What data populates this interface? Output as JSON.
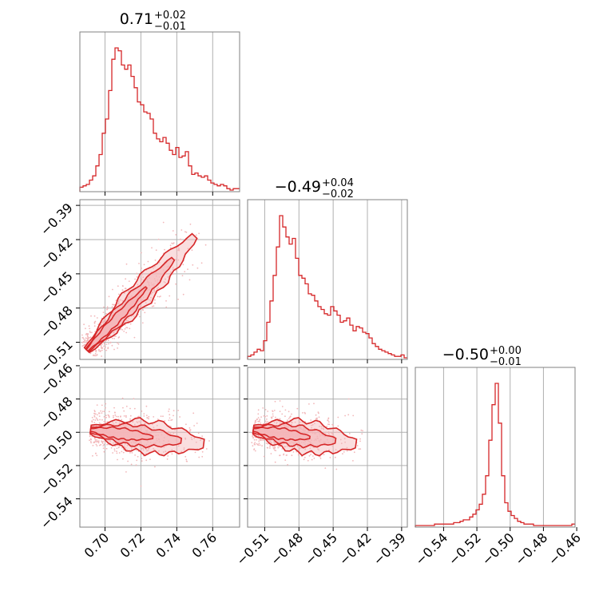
{
  "chart_data": {
    "type": "corner",
    "color": "#d62728",
    "contour_fill": "#f4b6b8",
    "scatter_color": "#f2b8ba",
    "grid": true,
    "parameters": [
      {
        "title_value": "0.71",
        "title_plus": "+0.02",
        "title_minus": "−0.01",
        "range": [
          0.686,
          0.775
        ],
        "ticks": [
          0.7,
          0.72,
          0.74,
          0.76
        ],
        "tick_labels": [
          "0.70",
          "0.72",
          "0.74",
          "0.76"
        ]
      },
      {
        "title_value": "−0.49",
        "title_plus": "+0.04",
        "title_minus": "−0.02",
        "range": [
          -0.525,
          -0.385
        ],
        "ticks": [
          -0.51,
          -0.48,
          -0.45,
          -0.42,
          -0.39
        ],
        "tick_labels": [
          "−0.51",
          "−0.48",
          "−0.45",
          "−0.42",
          "−0.39"
        ]
      },
      {
        "title_value": "−0.50",
        "title_plus": "+0.00",
        "title_minus": "−0.01",
        "range": [
          -0.557,
          -0.461
        ],
        "ticks": [
          -0.54,
          -0.52,
          -0.5,
          -0.48,
          -0.46
        ],
        "tick_labels": [
          "−0.54",
          "−0.52",
          "−0.50",
          "−0.48",
          "−0.46"
        ]
      }
    ],
    "histograms": [
      {
        "param": 0,
        "edges_start": 0.686,
        "bin_width": 0.00178,
        "counts": [
          2,
          3,
          4,
          7,
          10,
          17,
          25,
          40,
          50,
          70,
          92,
          100,
          98,
          88,
          85,
          88,
          80,
          72,
          62,
          60,
          55,
          54,
          50,
          40,
          36,
          34,
          37,
          33,
          28,
          25,
          30,
          23,
          24,
          27,
          17,
          11,
          12,
          10,
          9,
          10,
          7,
          5,
          4,
          3,
          4,
          3,
          1,
          0,
          1,
          1
        ]
      },
      {
        "param": 1,
        "edges_start": -0.525,
        "bin_width": 0.0028,
        "counts": [
          1,
          2,
          4,
          6,
          5,
          12,
          25,
          40,
          58,
          78,
          100,
          92,
          85,
          80,
          84,
          70,
          58,
          56,
          52,
          45,
          44,
          40,
          36,
          34,
          31,
          30,
          36,
          33,
          30,
          25,
          26,
          28,
          23,
          19,
          22,
          21,
          18,
          17,
          14,
          10,
          8,
          6,
          5,
          4,
          3,
          2,
          1,
          1,
          2,
          0
        ]
      },
      {
        "param": 2,
        "edges_start": -0.557,
        "bin_width": 0.00192,
        "counts": [
          0,
          0,
          0,
          0,
          0,
          0,
          1,
          1,
          1,
          1,
          1,
          1,
          2,
          2,
          3,
          4,
          4,
          6,
          8,
          11,
          15,
          22,
          35,
          60,
          85,
          100,
          72,
          35,
          16,
          10,
          7,
          5,
          3,
          2,
          1,
          1,
          1,
          0,
          0,
          0,
          0,
          0,
          0,
          0,
          0,
          0,
          0,
          0,
          0,
          1
        ]
      }
    ],
    "pairs": [
      {
        "x_param": 0,
        "y_param": 1,
        "trend": {
          "x": [
            0.69,
            0.75
          ],
          "y": [
            -0.517,
            -0.417
          ]
        },
        "spread_along": 0.5,
        "spread_across": 0.0045
      },
      {
        "x_param": 0,
        "y_param": 2,
        "trend": {
          "x": [
            0.692,
            0.755
          ],
          "y": [
            -0.4985,
            -0.507
          ]
        },
        "spread_along": 0.5,
        "spread_across": 0.004
      },
      {
        "x_param": 1,
        "y_param": 2,
        "trend": {
          "x": [
            -0.52,
            -0.43
          ],
          "y": [
            -0.4985,
            -0.507
          ]
        },
        "spread_along": 0.5,
        "spread_across": 0.004
      }
    ]
  }
}
